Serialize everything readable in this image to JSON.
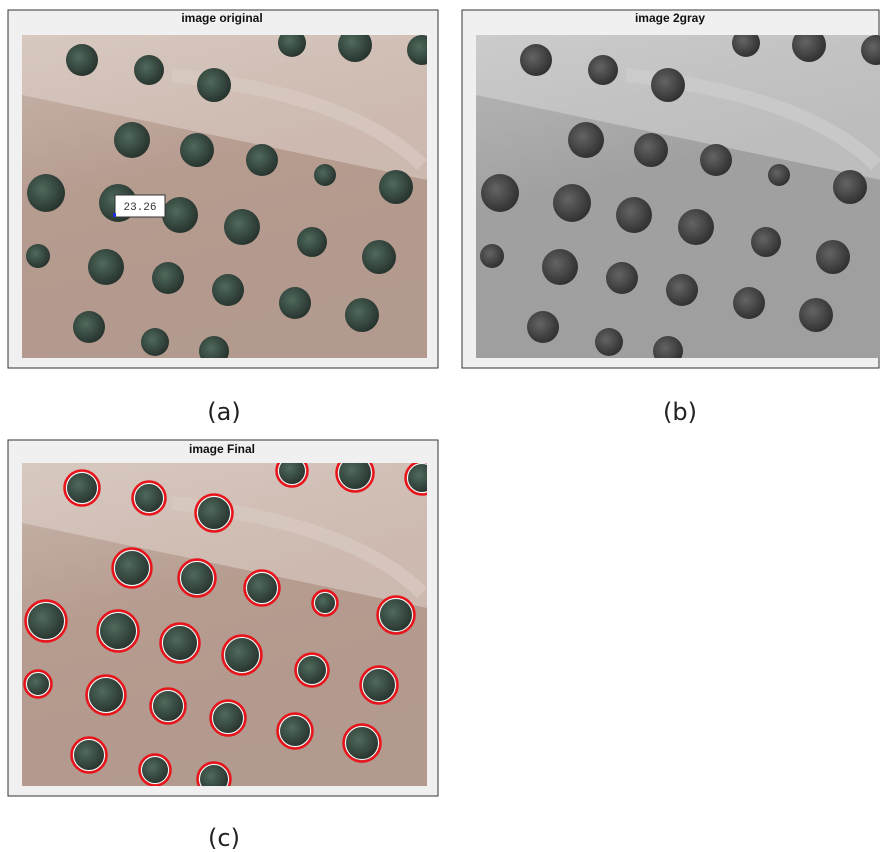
{
  "panels": [
    {
      "title": "image original",
      "annotation": "23.26",
      "label": "(a)"
    },
    {
      "title": "image 2gray",
      "label": "(b)"
    },
    {
      "title": "image Final",
      "label": "(c)"
    }
  ]
}
